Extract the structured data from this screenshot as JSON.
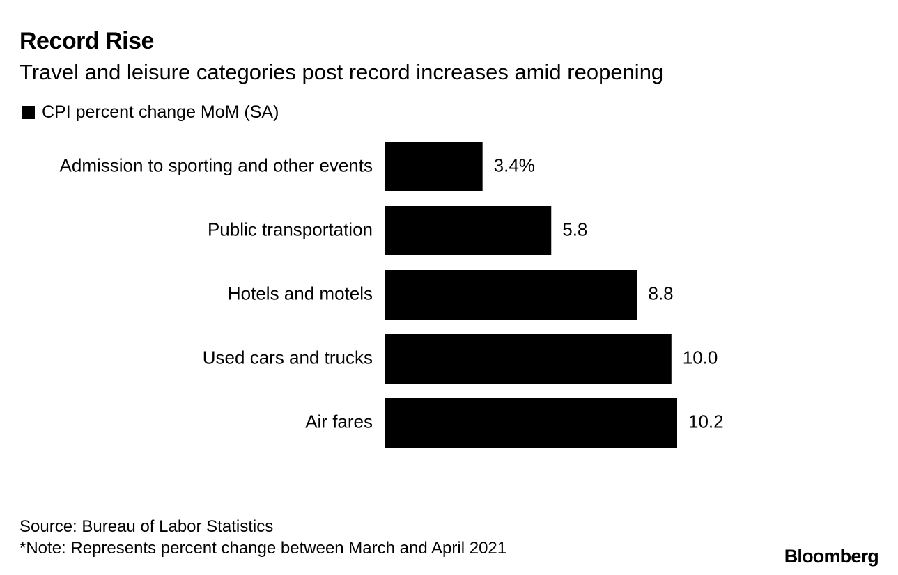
{
  "header": {
    "title": "Record Rise",
    "subtitle": "Travel and leisure categories post record increases amid reopening"
  },
  "legend": {
    "label": "CPI percent change MoM (SA)",
    "color": "#000000"
  },
  "chart_data": {
    "type": "bar",
    "orientation": "horizontal",
    "categories": [
      "Admission to sporting and other events",
      "Public transportation",
      "Hotels and motels",
      "Used cars and trucks",
      "Air fares"
    ],
    "series": [
      {
        "name": "CPI percent change MoM (SA)",
        "values": [
          3.4,
          5.8,
          8.8,
          10.0,
          10.2
        ],
        "color": "#000000"
      }
    ],
    "data_labels": [
      "3.4%",
      "5.8",
      "8.8",
      "10.0",
      "10.2"
    ],
    "xlim": [
      0,
      10.2
    ],
    "grid": false,
    "legend_position": "top-left",
    "title": "Record Rise",
    "subtitle": "Travel and leisure categories post record increases amid reopening"
  },
  "footer": {
    "source": "Source: Bureau of Labor Statistics",
    "note": "*Note: Represents percent change between March and April 2021",
    "logo": "Bloomberg"
  }
}
